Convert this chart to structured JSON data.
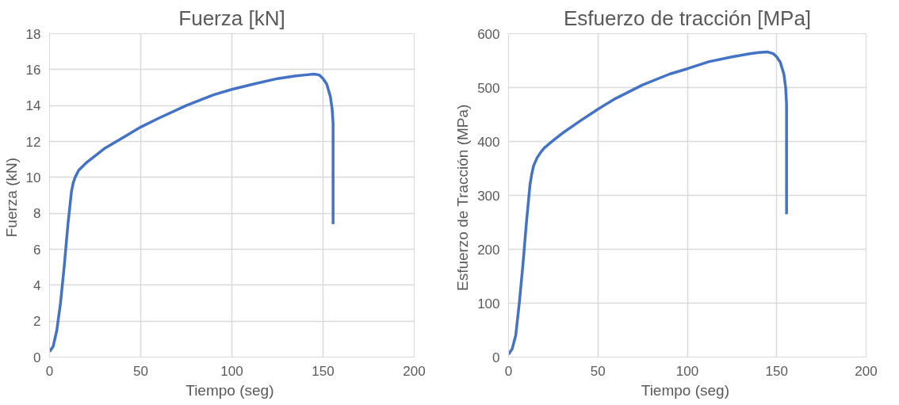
{
  "chart_data": [
    {
      "type": "line",
      "title": "Fuerza [kN]",
      "xlabel": "Tiempo  (seg)",
      "ylabel": "Fuerza  (kN)",
      "xlim": [
        0,
        200
      ],
      "ylim": [
        0,
        18
      ],
      "xticks": [
        0,
        50,
        100,
        150,
        200
      ],
      "yticks": [
        0,
        2,
        4,
        6,
        8,
        10,
        12,
        14,
        16,
        18
      ],
      "grid": true,
      "marker": "none",
      "line_style": "solid",
      "series": [
        {
          "color": "#4472c4",
          "x": [
            0,
            2,
            4,
            6,
            8,
            10,
            12,
            13,
            14,
            16,
            18,
            20,
            25,
            30,
            40,
            50,
            60,
            75,
            90,
            100,
            112,
            125,
            135,
            140,
            145,
            148,
            150,
            152,
            154,
            155,
            155.5,
            155.5,
            155.5
          ],
          "values": [
            0.3,
            0.6,
            1.5,
            3,
            5,
            7.3,
            9.2,
            9.7,
            10,
            10.4,
            10.6,
            10.8,
            11.2,
            11.6,
            12.2,
            12.8,
            13.3,
            14,
            14.6,
            14.9,
            15.2,
            15.5,
            15.65,
            15.7,
            15.75,
            15.7,
            15.5,
            15.2,
            14.5,
            13.8,
            13,
            10,
            7.4
          ]
        }
      ]
    },
    {
      "type": "line",
      "title": "Esfuerzo de tracción [MPa]",
      "xlabel": "Tiempo  (seg)",
      "ylabel": "Esfuerzo de Tracción  (MPa)",
      "xlim": [
        0,
        200
      ],
      "ylim": [
        0,
        600
      ],
      "xticks": [
        0,
        50,
        100,
        150,
        200
      ],
      "yticks": [
        0,
        100,
        200,
        300,
        400,
        500,
        600
      ],
      "grid": true,
      "marker": "none",
      "line_style": "solid",
      "series": [
        {
          "color": "#4472c4",
          "x": [
            0,
            2,
            4,
            6,
            8,
            10,
            12,
            13,
            14,
            16,
            18,
            20,
            25,
            30,
            40,
            50,
            60,
            75,
            90,
            100,
            112,
            125,
            135,
            140,
            145,
            148,
            150,
            152,
            154,
            155,
            155.5,
            155.5,
            155.5
          ],
          "values": [
            5,
            15,
            40,
            100,
            170,
            250,
            320,
            340,
            355,
            370,
            380,
            388,
            402,
            415,
            438,
            460,
            480,
            505,
            525,
            535,
            548,
            557,
            563,
            565,
            566,
            563,
            557,
            547,
            525,
            500,
            470,
            370,
            265
          ]
        }
      ]
    }
  ]
}
